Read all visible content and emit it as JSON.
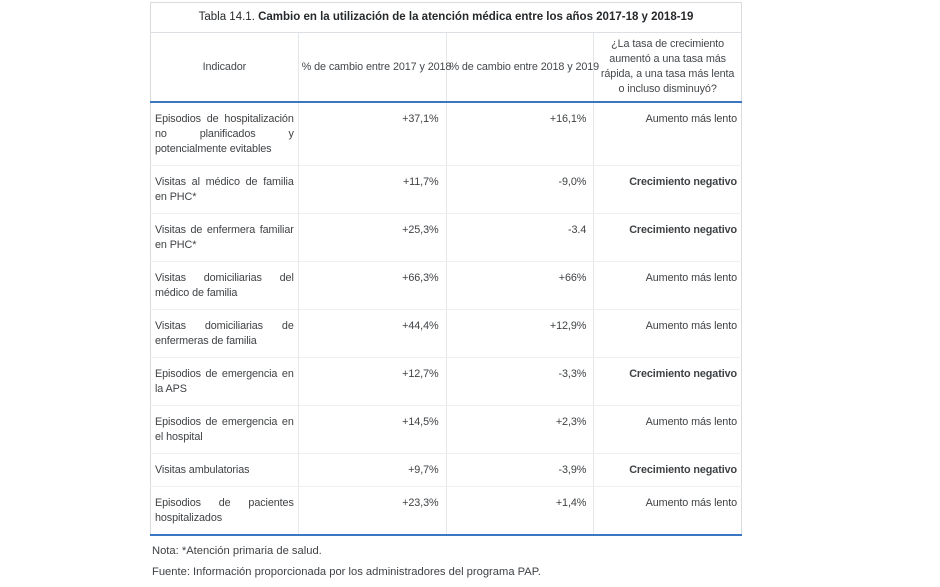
{
  "colors": {
    "accent_blue": "#3a76c1",
    "outer_border_gray": "#d9dcdf",
    "inner_line_gray": "#edeff1",
    "text_dark_gray": "#3f4245",
    "background": "#ffffff"
  },
  "table": {
    "title_prefix": "Tabla 14.1.",
    "title": "Cambio en la utilización de la atención médica entre los años 2017-18 y 2018-19",
    "headers": [
      "Indicador",
      "% de cambio entre 2017 y 2018",
      "% de cambio entre 2018 y 2019",
      "¿La tasa de crecimiento aumentó a una tasa más rápida, a una tasa más lenta o incluso disminuyó?"
    ],
    "rows": [
      {
        "indicator": "Episodios de hospitalización no planificados y potencialmente evitables",
        "change_2017_2018": "+37,1%",
        "change_2018_2019": "+16,1%",
        "trend": "Aumento más lento",
        "trend_bold": false
      },
      {
        "indicator": "Visitas al médico de familia en PHC*",
        "change_2017_2018": "+11,7%",
        "change_2018_2019": "-9,0%",
        "trend": "Crecimiento negativo",
        "trend_bold": true
      },
      {
        "indicator": "Visitas de enfermera familiar en PHC*",
        "change_2017_2018": "+25,3%",
        "change_2018_2019": "-3.4",
        "trend": "Crecimiento negativo",
        "trend_bold": true
      },
      {
        "indicator": "Visitas domiciliarias del médico de familia",
        "change_2017_2018": "+66,3%",
        "change_2018_2019": "+66%",
        "trend": "Aumento más lento",
        "trend_bold": false
      },
      {
        "indicator": "Visitas domiciliarias de enfermeras de familia",
        "change_2017_2018": "+44,4%",
        "change_2018_2019": "+12,9%",
        "trend": "Aumento más lento",
        "trend_bold": false
      },
      {
        "indicator": "Episodios de emergencia en la APS",
        "change_2017_2018": "+12,7%",
        "change_2018_2019": "-3,3%",
        "trend": "Crecimiento negativo",
        "trend_bold": true
      },
      {
        "indicator": "Episodios de emergencia en el hospital",
        "change_2017_2018": "+14,5%",
        "change_2018_2019": "+2,3%",
        "trend": "Aumento más lento",
        "trend_bold": false
      },
      {
        "indicator": "Visitas ambulatorias",
        "change_2017_2018": "+9,7%",
        "change_2018_2019": "-3,9%",
        "trend": "Crecimiento negativo",
        "trend_bold": true
      },
      {
        "indicator": "Episodios de pacientes hospitalizados",
        "change_2017_2018": "+23,3%",
        "change_2018_2019": "+1,4%",
        "trend": "Aumento más lento",
        "trend_bold": false
      }
    ]
  },
  "notes": {
    "note": "Nota: *Atención primaria de salud.",
    "source": "Fuente: Información proporcionada por los administradores del programa PAP."
  }
}
